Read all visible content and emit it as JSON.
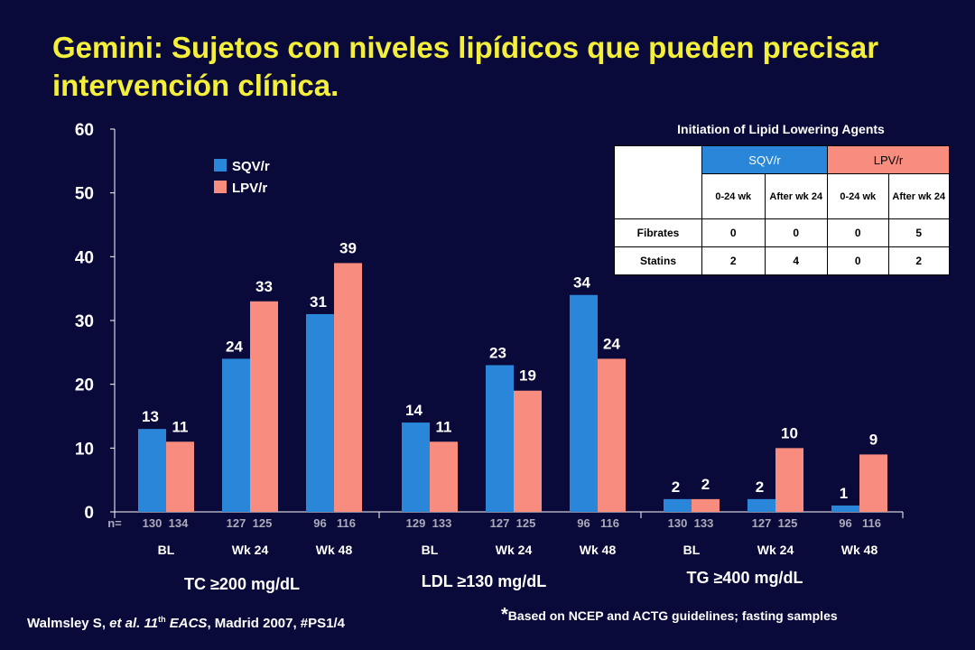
{
  "title": "Gemini: Sujetos con niveles lipídicos que pueden precisar intervención clínica.",
  "chart_data": {
    "type": "bar",
    "ylim": [
      0,
      60
    ],
    "yticks": [
      "0",
      "10",
      "20",
      "30",
      "40",
      "50",
      "60"
    ],
    "legend": [
      {
        "name": "SQV/r",
        "color": "#2a86d8"
      },
      {
        "name": "LPV/r",
        "color": "#f88c7e"
      }
    ],
    "legend_position": "top-left",
    "grid": false,
    "n_prefix": "n=",
    "groups": [
      {
        "label": "TC ≥200 mg/dL",
        "timepoints": [
          {
            "label": "BL",
            "sqv": 13,
            "lpv": 11,
            "n_sqv": "130",
            "n_lpv": "134"
          },
          {
            "label": "Wk 24",
            "sqv": 24,
            "lpv": 33,
            "n_sqv": "127",
            "n_lpv": "125"
          },
          {
            "label": "Wk 48",
            "sqv": 31,
            "lpv": 39,
            "n_sqv": "96",
            "n_lpv": "116"
          }
        ]
      },
      {
        "label": "LDL ≥130 mg/dL",
        "timepoints": [
          {
            "label": "BL",
            "sqv": 14,
            "lpv": 11,
            "n_sqv": "129",
            "n_lpv": "133"
          },
          {
            "label": "Wk 24",
            "sqv": 23,
            "lpv": 19,
            "n_sqv": "127",
            "n_lpv": "125"
          },
          {
            "label": "Wk 48",
            "sqv": 34,
            "lpv": 24,
            "n_sqv": "96",
            "n_lpv": "116"
          }
        ]
      },
      {
        "label": "TG ≥400 mg/dL",
        "timepoints": [
          {
            "label": "BL",
            "sqv": 2,
            "lpv": 2,
            "n_sqv": "130",
            "n_lpv": "133"
          },
          {
            "label": "Wk 24",
            "sqv": 2,
            "lpv": 10,
            "n_sqv": "127",
            "n_lpv": "125"
          },
          {
            "label": "Wk 48",
            "sqv": 1,
            "lpv": 9,
            "n_sqv": "96",
            "n_lpv": "116"
          }
        ]
      }
    ]
  },
  "lipid_table": {
    "title": "Initiation of Lipid Lowering Agents",
    "col_groups": [
      "SQV/r",
      "LPV/r"
    ],
    "sub_headers": [
      "0-24 wk",
      "After wk 24",
      "0-24 wk",
      "After wk 24"
    ],
    "rows": [
      {
        "label": "Fibrates",
        "values": [
          "0",
          "0",
          "0",
          "5"
        ]
      },
      {
        "label": "Statins",
        "values": [
          "2",
          "4",
          "0",
          "2"
        ]
      }
    ]
  },
  "citation": {
    "author": "Walmsley S, ",
    "etal": "et al.",
    "pre": " 11",
    "sup": "th",
    "post": " EACS",
    "rest": ", Madrid 2007, #PS1/4"
  },
  "footnote": {
    "star": "*",
    "text": "Based on NCEP and ACTG guidelines; fasting samples"
  }
}
